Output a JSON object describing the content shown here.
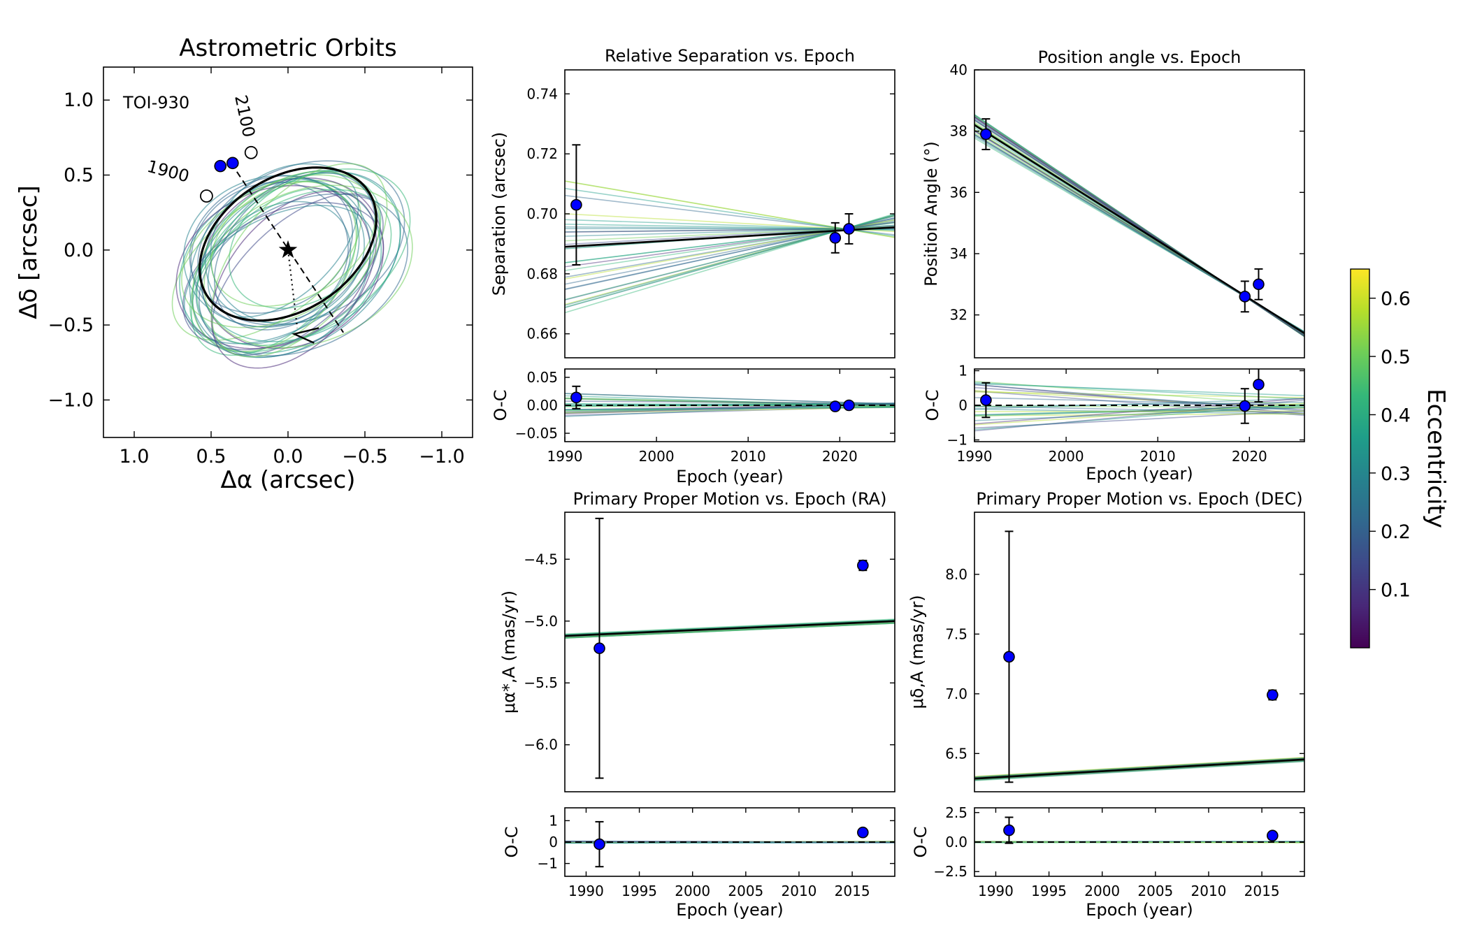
{
  "chart_data": [
    {
      "id": "orbit",
      "type": "scatter",
      "title": "Astrometric Orbits",
      "xlabel": "Δα (arcsec)",
      "ylabel": "Δδ [arcsec]",
      "xlim": [
        1.2,
        -1.2
      ],
      "ylim": [
        -1.25,
        1.22
      ],
      "xticks": [
        1.0,
        0.5,
        0.0,
        -0.5,
        -1.0
      ],
      "xtick_labels": [
        "1.0",
        "0.5",
        "0.0",
        "−0.5",
        "−1.0"
      ],
      "yticks": [
        1.0,
        0.5,
        0.0,
        -0.5,
        -1.0
      ],
      "ytick_labels": [
        "1.0",
        "0.5",
        "0.0",
        "−0.5",
        "−1.0"
      ],
      "target": "TOI-930",
      "epoch_labels": [
        "1900",
        "2100"
      ],
      "best_orbit": {
        "center": [
          0.0,
          0.04
        ],
        "a": 0.63,
        "b": 0.44,
        "rotation_deg": -35
      },
      "star": [
        0.0,
        0.0
      ],
      "observed_points": [
        [
          0.44,
          0.56
        ],
        [
          0.36,
          0.58
        ]
      ],
      "epoch_markers": [
        [
          0.53,
          0.36
        ],
        [
          0.24,
          0.65
        ]
      ],
      "line_of_nodes": [
        [
          0.37,
          0.58
        ],
        [
          -0.36,
          -0.55
        ]
      ],
      "periastron_line": [
        [
          0.0,
          0.0
        ],
        [
          -0.06,
          -0.52
        ]
      ]
    },
    {
      "id": "sep",
      "type": "line",
      "title": "Relative Separation vs. Epoch",
      "xlabel": "",
      "ylabel": "Separation (arcsec)",
      "xlim": [
        1990,
        2026
      ],
      "ylim": [
        0.652,
        0.748
      ],
      "yticks": [
        0.66,
        0.68,
        0.7,
        0.72,
        0.74
      ],
      "ytick_labels": [
        "0.66",
        "0.68",
        "0.70",
        "0.72",
        "0.74"
      ],
      "best_fit": [
        [
          1990,
          0.689
        ],
        [
          2026,
          0.6955
        ]
      ],
      "pivot": [
        2020.5,
        0.695
      ],
      "points": [
        {
          "x": 1991.25,
          "y": 0.703,
          "err": 0.02
        },
        {
          "x": 2019.5,
          "y": 0.692,
          "err": 0.005
        },
        {
          "x": 2021.0,
          "y": 0.695,
          "err": 0.005
        }
      ]
    },
    {
      "id": "sep_oc",
      "type": "line",
      "title": "",
      "xlabel": "Epoch (year)",
      "ylabel": "O-C",
      "xlim": [
        1990,
        2026
      ],
      "ylim": [
        -0.065,
        0.065
      ],
      "xticks": [
        1990,
        2000,
        2010,
        2020
      ],
      "xtick_labels": [
        "1990",
        "2000",
        "2010",
        "2020"
      ],
      "yticks": [
        0.05,
        0.0,
        -0.05
      ],
      "ytick_labels": [
        "0.05",
        "0.00",
        "−0.05"
      ],
      "points": [
        {
          "x": 1991.25,
          "y": 0.014,
          "err": 0.02
        },
        {
          "x": 2019.5,
          "y": -0.002,
          "err": 0.003
        },
        {
          "x": 2021.0,
          "y": 0.0,
          "err": 0.003
        }
      ]
    },
    {
      "id": "pa",
      "type": "line",
      "title": "Position angle vs. Epoch",
      "xlabel": "",
      "ylabel": "Position Angle (°)",
      "xlim": [
        1990,
        2026
      ],
      "ylim": [
        30.6,
        40.0
      ],
      "yticks": [
        32,
        34,
        36,
        38,
        40
      ],
      "ytick_labels": [
        "32",
        "34",
        "36",
        "38",
        "40"
      ],
      "best_fit": [
        [
          1990,
          38.2
        ],
        [
          2026,
          31.4
        ]
      ],
      "pivot": [
        2019.5,
        32.6
      ],
      "points": [
        {
          "x": 1991.25,
          "y": 37.9,
          "err": 0.5
        },
        {
          "x": 2019.5,
          "y": 32.6,
          "err": 0.5
        },
        {
          "x": 2021.0,
          "y": 33.0,
          "err": 0.5
        }
      ]
    },
    {
      "id": "pa_oc",
      "type": "line",
      "title": "",
      "xlabel": "Epoch (year)",
      "ylabel": "O-C",
      "xlim": [
        1990,
        2026
      ],
      "ylim": [
        -1.05,
        1.05
      ],
      "xticks": [
        1990,
        2000,
        2010,
        2020
      ],
      "xtick_labels": [
        "1990",
        "2000",
        "2010",
        "2020"
      ],
      "yticks": [
        1,
        0,
        -1
      ],
      "ytick_labels": [
        "1",
        "0",
        "−1"
      ],
      "points": [
        {
          "x": 1991.25,
          "y": 0.15,
          "err": 0.5
        },
        {
          "x": 2019.5,
          "y": -0.02,
          "err": 0.5
        },
        {
          "x": 2021.0,
          "y": 0.6,
          "err": 0.5
        }
      ]
    },
    {
      "id": "pm_ra",
      "type": "line",
      "title": "Primary Proper Motion vs. Epoch (RA)",
      "xlabel": "",
      "ylabel": "μα*,A (mas/yr)",
      "xlim": [
        1988,
        2019
      ],
      "ylim": [
        -6.38,
        -4.12
      ],
      "yticks": [
        -4.5,
        -5.0,
        -5.5,
        -6.0
      ],
      "ytick_labels": [
        "−4.5",
        "−5.0",
        "−5.5",
        "−6.0"
      ],
      "best_fit": [
        [
          1988,
          -5.12
        ],
        [
          2019,
          -5.0
        ]
      ],
      "points": [
        {
          "x": 1991.25,
          "y": -5.22,
          "err": 1.05
        },
        {
          "x": 2016.0,
          "y": -4.55,
          "err": 0.04
        }
      ]
    },
    {
      "id": "pm_ra_oc",
      "type": "line",
      "title": "",
      "xlabel": "Epoch (year)",
      "ylabel": "O-C",
      "xlim": [
        1988,
        2019
      ],
      "ylim": [
        -1.6,
        1.6
      ],
      "xticks": [
        1990,
        1995,
        2000,
        2005,
        2010,
        2015
      ],
      "xtick_labels": [
        "1990",
        "1995",
        "2000",
        "2005",
        "2010",
        "2015"
      ],
      "yticks": [
        1,
        0,
        -1
      ],
      "ytick_labels": [
        "1",
        "0",
        "−1"
      ],
      "points": [
        {
          "x": 1991.25,
          "y": -0.1,
          "err": 1.05
        },
        {
          "x": 2016.0,
          "y": 0.45,
          "err": 0.04
        }
      ]
    },
    {
      "id": "pm_dec",
      "type": "line",
      "title": "Primary Proper Motion vs. Epoch (DEC)",
      "xlabel": "",
      "ylabel": "μδ,A (mas/yr)",
      "xlim": [
        1988,
        2019
      ],
      "ylim": [
        6.18,
        8.52
      ],
      "yticks": [
        8.0,
        7.5,
        7.0,
        6.5
      ],
      "ytick_labels": [
        "8.0",
        "7.5",
        "7.0",
        "6.5"
      ],
      "best_fit": [
        [
          1988,
          6.29
        ],
        [
          2019,
          6.45
        ]
      ],
      "points": [
        {
          "x": 1991.25,
          "y": 7.31,
          "err": 1.05
        },
        {
          "x": 2016.0,
          "y": 6.99,
          "err": 0.04
        }
      ]
    },
    {
      "id": "pm_dec_oc",
      "type": "line",
      "title": "",
      "xlabel": "Epoch (year)",
      "ylabel": "O-C",
      "xlim": [
        1988,
        2019
      ],
      "ylim": [
        -2.9,
        2.9
      ],
      "xticks": [
        1990,
        1995,
        2000,
        2005,
        2010,
        2015
      ],
      "xtick_labels": [
        "1990",
        "1995",
        "2000",
        "2005",
        "2010",
        "2015"
      ],
      "yticks": [
        2.5,
        0.0,
        -2.5
      ],
      "ytick_labels": [
        "2.5",
        "0.0",
        "−2.5"
      ],
      "points": [
        {
          "x": 1991.25,
          "y": 1.0,
          "err": 1.1
        },
        {
          "x": 2016.0,
          "y": 0.55,
          "err": 0.04
        }
      ]
    }
  ],
  "colorbar": {
    "label": "Eccentricity",
    "range": [
      0.0,
      0.65
    ],
    "ticks": [
      0.1,
      0.2,
      0.3,
      0.4,
      0.5,
      0.6
    ],
    "tick_labels": [
      "0.1",
      "0.2",
      "0.3",
      "0.4",
      "0.5",
      "0.6"
    ]
  },
  "colors": {
    "point_fill": "#0000ff",
    "best_fit": "#000000",
    "viridis": [
      "#440154",
      "#482878",
      "#3e4989",
      "#31688e",
      "#26828e",
      "#1f9e89",
      "#35b779",
      "#6ece58",
      "#b5de2b",
      "#fde725"
    ]
  }
}
